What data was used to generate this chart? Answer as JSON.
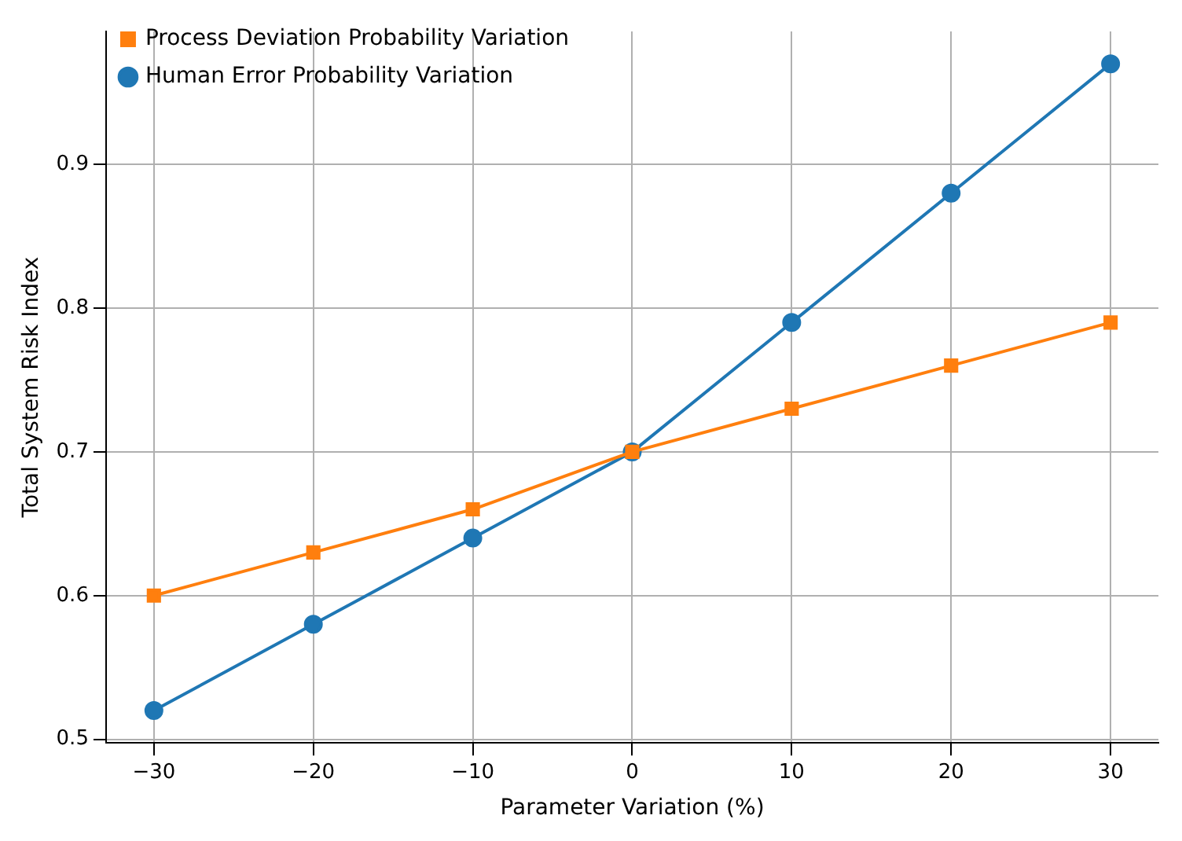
{
  "chart_data": {
    "type": "line",
    "xlabel": "Parameter Variation (%)",
    "ylabel": "Total System Risk Index",
    "x": [
      -30,
      -20,
      -10,
      0,
      10,
      20,
      30
    ],
    "series": [
      {
        "name": "Human Error Probability Variation",
        "color": "#1f77b4",
        "marker": "circle",
        "values": [
          0.52,
          0.58,
          0.64,
          0.7,
          0.79,
          0.88,
          0.97
        ]
      },
      {
        "name": "Process Deviation Probability Variation",
        "color": "#ff7f0e",
        "marker": "square",
        "values": [
          0.6,
          0.63,
          0.66,
          0.7,
          0.73,
          0.76,
          0.79
        ]
      }
    ],
    "xlim": [
      -33,
      33
    ],
    "ylim": [
      0.4975,
      0.9925
    ],
    "xticks": [
      {
        "value": -30,
        "label": "−30"
      },
      {
        "value": -20,
        "label": "−20"
      },
      {
        "value": -10,
        "label": "−10"
      },
      0,
      10,
      20,
      30
    ],
    "yticks": [
      0.5,
      0.6,
      0.7,
      0.8,
      0.9
    ],
    "grid": true,
    "legend": "top left",
    "line_style": "solid"
  }
}
